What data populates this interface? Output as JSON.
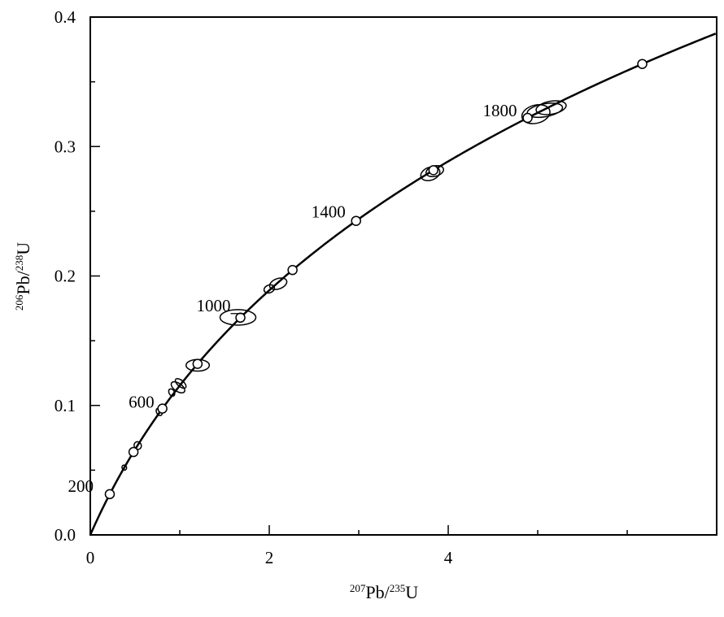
{
  "chart_data": {
    "type": "scatter",
    "subtype": "concordia-diagram",
    "xlabel": {
      "pre": "207",
      "mid": "Pb/",
      "pre2": "235",
      "post": "U"
    },
    "ylabel": {
      "pre": "206",
      "mid": "Pb/",
      "pre2": "238",
      "post": "U"
    },
    "xlim": [
      0,
      7
    ],
    "ylim": [
      0,
      0.4
    ],
    "x_ticks": [
      0,
      2,
      4
    ],
    "x_tick_labels": [
      "0",
      "2",
      "4"
    ],
    "x_minor_ticks": [
      1,
      3,
      5,
      6
    ],
    "y_ticks": [
      0,
      0.1,
      0.2,
      0.3,
      0.4
    ],
    "y_tick_labels": [
      "0.0",
      "0.1",
      "0.2",
      "0.3",
      "0.4"
    ],
    "y_minor_ticks": [
      0.05,
      0.15,
      0.25,
      0.35
    ],
    "grid": false,
    "concordia": {
      "age_min_ma": 0,
      "age_max_ma": 2120
    },
    "age_markers": [
      {
        "age": 200,
        "label": "200"
      },
      {
        "age": 400,
        "label": ""
      },
      {
        "age": 600,
        "label": "600"
      },
      {
        "age": 800,
        "label": ""
      },
      {
        "age": 1000,
        "label": "1000"
      },
      {
        "age": 1200,
        "label": ""
      },
      {
        "age": 1400,
        "label": "1400"
      },
      {
        "age": 1600,
        "label": ""
      },
      {
        "age": 1800,
        "label": "1800"
      },
      {
        "age": 2000,
        "label": ""
      }
    ],
    "error_ellipses": [
      {
        "x": 0.38,
        "y": 0.052,
        "rx": 0.025,
        "ry": 0.002,
        "angle": -30
      },
      {
        "x": 0.53,
        "y": 0.069,
        "rx": 0.04,
        "ry": 0.003,
        "angle": -30
      },
      {
        "x": 0.77,
        "y": 0.095,
        "rx": 0.03,
        "ry": 0.003,
        "angle": -30
      },
      {
        "x": 0.91,
        "y": 0.11,
        "rx": 0.03,
        "ry": 0.003,
        "angle": -30
      },
      {
        "x": 0.98,
        "y": 0.114,
        "rx": 0.045,
        "ry": 0.006,
        "angle": -55
      },
      {
        "x": 1.01,
        "y": 0.117,
        "rx": 0.035,
        "ry": 0.005,
        "angle": -50
      },
      {
        "x": 1.2,
        "y": 0.131,
        "rx": 0.13,
        "ry": 0.0045,
        "angle": 0
      },
      {
        "x": 1.65,
        "y": 0.168,
        "rx": 0.2,
        "ry": 0.006,
        "angle": 0
      },
      {
        "x": 2.0,
        "y": 0.19,
        "rx": 0.06,
        "ry": 0.003,
        "angle": -20
      },
      {
        "x": 2.1,
        "y": 0.194,
        "rx": 0.1,
        "ry": 0.004,
        "angle": -20
      },
      {
        "x": 3.8,
        "y": 0.279,
        "rx": 0.11,
        "ry": 0.005,
        "angle": -20
      },
      {
        "x": 3.85,
        "y": 0.281,
        "rx": 0.1,
        "ry": 0.004,
        "angle": -15
      },
      {
        "x": 4.98,
        "y": 0.325,
        "rx": 0.16,
        "ry": 0.007,
        "angle": -15
      },
      {
        "x": 5.08,
        "y": 0.328,
        "rx": 0.2,
        "ry": 0.005,
        "angle": -10
      },
      {
        "x": 5.15,
        "y": 0.33,
        "rx": 0.17,
        "ry": 0.005,
        "angle": -10
      }
    ]
  }
}
